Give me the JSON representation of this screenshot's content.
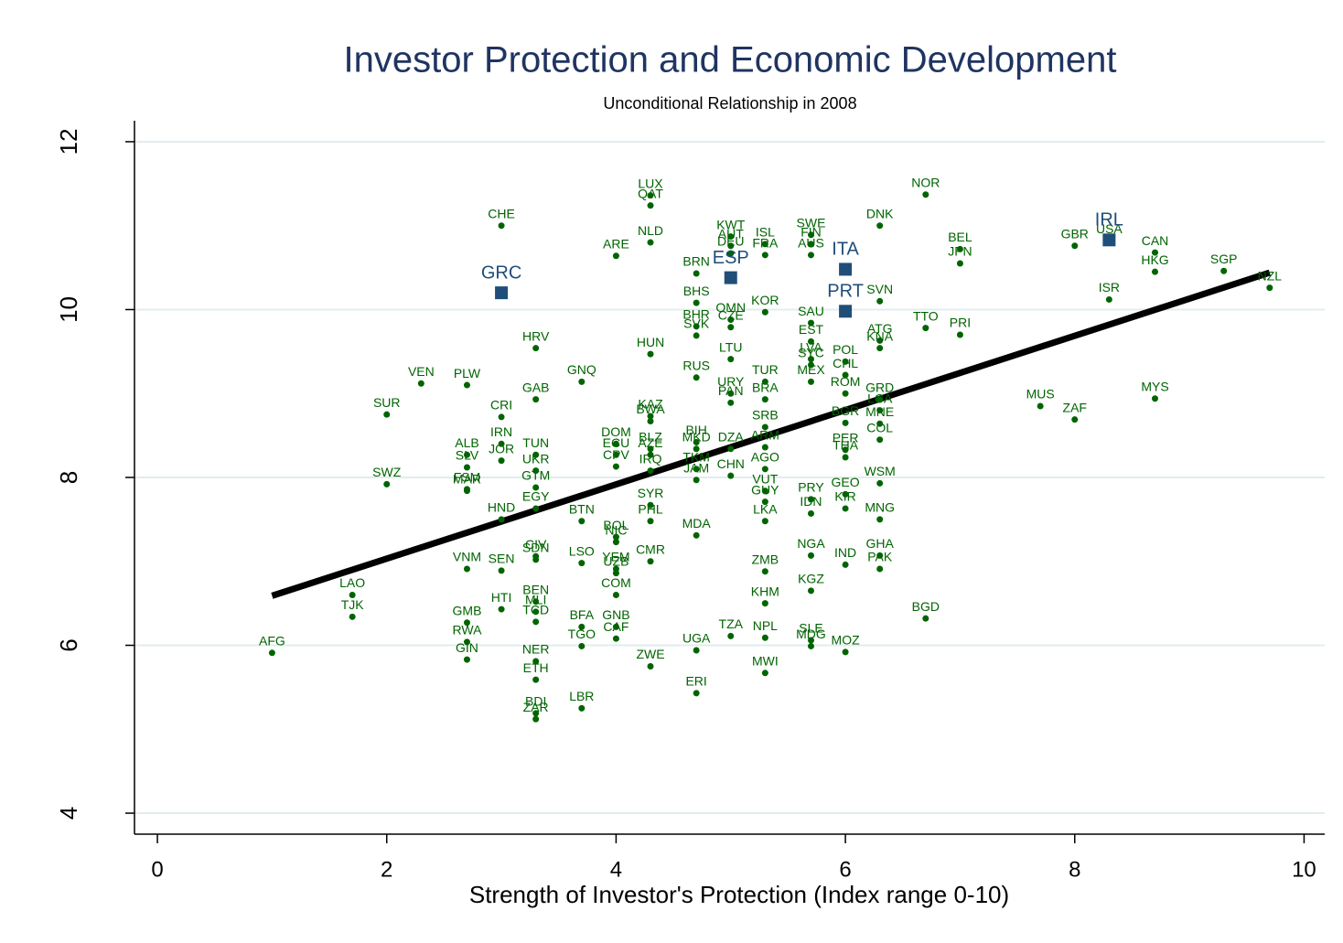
{
  "chart_data": {
    "type": "scatter",
    "title": "Investor Protection and Economic Development",
    "subtitle": "Unconditional Relationship in 2008",
    "x_label": "Strength of Investor's Protection (Index range 0-10)",
    "xlim": [
      -0.2,
      10.18
    ],
    "ylim": [
      3.75,
      12.25
    ],
    "xticks": [
      0,
      2,
      4,
      6,
      8,
      10
    ],
    "yticks": [
      4,
      6,
      8,
      10,
      12
    ],
    "grid": true,
    "series": [
      {
        "color": "#006400",
        "marker": "circle",
        "labels": [
          "AFG",
          "LAO",
          "TJK",
          "SWZ",
          "SUR",
          "VEN",
          "PLW",
          "ALB",
          "SLV",
          "FSM",
          "MAR",
          "VNM",
          "GMB",
          "RWA",
          "GIN",
          "CHE",
          "CRI",
          "IRN",
          "JOR",
          "HND",
          "SEN",
          "HTI",
          "HRV",
          "GAB",
          "TUN",
          "UKR",
          "GTM",
          "EGY",
          "CIV",
          "SDN",
          "BEN",
          "MLI",
          "TCD",
          "NER",
          "ETH",
          "BDI",
          "ZAR",
          "BTN",
          "LSO",
          "BFA",
          "TGO",
          "LBR",
          "GNQ",
          "ARE",
          "DOM",
          "ECU",
          "CPV",
          "BOL",
          "NIC",
          "YEM",
          "UZB",
          "COM",
          "GNB",
          "CAF",
          "LUX",
          "QAT",
          "NLD",
          "HUN",
          "KAZ",
          "BWA",
          "BLZ",
          "AZE",
          "IRQ",
          "SYR",
          "PHL",
          "CMR",
          "ZWE",
          "BRN",
          "BHS",
          "BHR",
          "SVK",
          "RUS",
          "BIH",
          "MKD",
          "TKM",
          "JAM",
          "MDA",
          "UGA",
          "ERI",
          "KWT",
          "AUT",
          "DEU",
          "OMN",
          "CZE",
          "LTU",
          "URY",
          "PAN",
          "DZA",
          "CHN",
          "TZA",
          "ISL",
          "FRA",
          "KOR",
          "TUR",
          "BRA",
          "SRB",
          "ARM",
          "AGO",
          "VUT",
          "GUY",
          "LKA",
          "ZMB",
          "KHM",
          "NPL",
          "MWI",
          "SWE",
          "FIN",
          "AUS",
          "SAU",
          "EST",
          "LVA",
          "SYC",
          "MEX",
          "PRY",
          "IDN",
          "NGA",
          "KGZ",
          "SLE",
          "MDG",
          "POL",
          "CHL",
          "ROM",
          "BGR",
          "PER",
          "THA",
          "GEO",
          "KIR",
          "IND",
          "MOZ",
          "DNK",
          "SVN",
          "ATG",
          "KNA",
          "GRD",
          "LCA",
          "MNE",
          "COL",
          "WSM",
          "MNG",
          "GHA",
          "PAK",
          "NOR",
          "TTO",
          "BGD",
          "BEL",
          "JPN",
          "PRI",
          "MUS",
          "ZAF",
          "GBR",
          "USA",
          "ISR",
          "CAN",
          "HKG",
          "MYS",
          "SGP",
          "NZL"
        ],
        "x": [
          1.0,
          1.7,
          1.7,
          2.0,
          2.0,
          2.3,
          2.7,
          2.7,
          2.7,
          2.7,
          2.7,
          2.7,
          2.7,
          2.7,
          2.7,
          3.0,
          3.0,
          3.0,
          3.0,
          3.0,
          3.0,
          3.0,
          3.3,
          3.3,
          3.3,
          3.3,
          3.3,
          3.3,
          3.3,
          3.3,
          3.3,
          3.3,
          3.3,
          3.3,
          3.3,
          3.3,
          3.3,
          3.7,
          3.7,
          3.7,
          3.7,
          3.7,
          3.7,
          4.0,
          4.0,
          4.0,
          4.0,
          4.0,
          4.0,
          4.0,
          4.0,
          4.0,
          4.0,
          4.0,
          4.3,
          4.3,
          4.3,
          4.3,
          4.3,
          4.3,
          4.3,
          4.3,
          4.3,
          4.3,
          4.3,
          4.3,
          4.3,
          4.7,
          4.7,
          4.7,
          4.7,
          4.7,
          4.7,
          4.7,
          4.7,
          4.7,
          4.7,
          4.7,
          4.7,
          5.0,
          5.0,
          5.0,
          5.0,
          5.0,
          5.0,
          5.0,
          5.0,
          5.0,
          5.0,
          5.0,
          5.3,
          5.3,
          5.3,
          5.3,
          5.3,
          5.3,
          5.3,
          5.3,
          5.3,
          5.3,
          5.3,
          5.3,
          5.3,
          5.3,
          5.3,
          5.7,
          5.7,
          5.7,
          5.7,
          5.7,
          5.7,
          5.7,
          5.7,
          5.7,
          5.7,
          5.7,
          5.7,
          5.7,
          5.7,
          6.0,
          6.0,
          6.0,
          6.0,
          6.0,
          6.0,
          6.0,
          6.0,
          6.0,
          6.0,
          6.3,
          6.3,
          6.3,
          6.3,
          6.3,
          6.3,
          6.3,
          6.3,
          6.3,
          6.3,
          6.3,
          6.3,
          6.7,
          6.7,
          6.7,
          7.0,
          7.0,
          7.0,
          7.7,
          8.0,
          8.0,
          8.3,
          8.3,
          8.7,
          8.7,
          8.7,
          9.3,
          9.7
        ],
        "y": [
          5.91,
          6.6,
          6.34,
          7.92,
          8.75,
          9.12,
          9.1,
          8.27,
          8.12,
          7.86,
          7.84,
          6.91,
          6.27,
          6.04,
          5.83,
          11.0,
          8.72,
          8.4,
          8.2,
          7.5,
          6.89,
          6.43,
          9.54,
          8.93,
          8.27,
          8.08,
          7.88,
          7.63,
          7.06,
          7.02,
          6.52,
          6.4,
          6.28,
          5.81,
          5.59,
          5.19,
          5.12,
          7.48,
          6.98,
          6.22,
          5.99,
          5.25,
          9.14,
          10.64,
          8.4,
          8.27,
          8.13,
          7.29,
          7.23,
          6.91,
          6.86,
          6.6,
          6.22,
          6.08,
          11.36,
          11.24,
          10.8,
          9.47,
          8.73,
          8.67,
          8.34,
          8.27,
          8.08,
          7.67,
          7.48,
          7.0,
          5.75,
          10.43,
          10.08,
          9.8,
          9.69,
          9.19,
          8.42,
          8.34,
          8.1,
          7.97,
          7.31,
          5.94,
          5.43,
          10.87,
          10.76,
          10.67,
          9.88,
          9.79,
          9.41,
          9.0,
          8.89,
          8.34,
          8.02,
          6.11,
          10.78,
          10.65,
          9.97,
          9.14,
          8.93,
          8.6,
          8.36,
          8.1,
          7.84,
          7.71,
          7.48,
          6.88,
          6.5,
          6.09,
          5.67,
          10.89,
          10.78,
          10.65,
          9.84,
          9.62,
          9.41,
          9.34,
          9.14,
          7.74,
          7.57,
          7.07,
          6.65,
          6.06,
          5.99,
          9.38,
          9.22,
          9.0,
          8.65,
          8.33,
          8.24,
          7.8,
          7.63,
          6.96,
          5.92,
          11.0,
          10.1,
          9.63,
          9.54,
          8.93,
          8.8,
          8.64,
          8.45,
          7.93,
          7.5,
          7.07,
          6.91,
          11.37,
          9.78,
          6.32,
          10.72,
          10.55,
          9.7,
          8.85,
          8.69,
          10.76,
          10.82,
          10.12,
          10.68,
          10.45,
          8.94,
          10.46,
          10.26
        ]
      },
      {
        "color": "#1f4e79",
        "marker": "square",
        "labels": [
          "GRC",
          "ESP",
          "ITA",
          "PRT",
          "IRL"
        ],
        "x": [
          3.0,
          5.0,
          6.0,
          6.0,
          8.3
        ],
        "y": [
          10.2,
          10.38,
          10.48,
          9.98,
          10.83
        ]
      }
    ],
    "fit_line": {
      "color": "#000000",
      "x": [
        1.0,
        9.7
      ],
      "y": [
        6.59,
        10.44
      ]
    }
  }
}
